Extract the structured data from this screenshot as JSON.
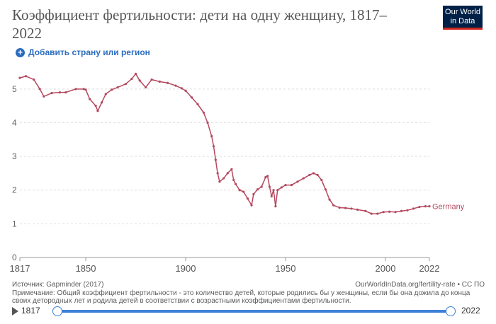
{
  "header": {
    "title": "Коэффициент фертильности: дети на одну женщину, 1817–2022",
    "logo_line1": "Our World",
    "logo_line2": "in Data"
  },
  "controls": {
    "add_label": "Добавить страну или регион"
  },
  "footer": {
    "source": "Источник: Gapminder (2017)",
    "url": "OurWorldInData.org/fertility-rate • CC ПО",
    "note": "Примечание: Общий коэффициент фертильности - это количество детей, которые родились бы у женщины, если бы она дожила до конца своих детородных лет и родила детей в соответствии с возрастными коэффициентами фертильности."
  },
  "timeline": {
    "start": "1817",
    "end": "2022"
  },
  "colors": {
    "series": "#b5485f",
    "grid": "#dddddd",
    "accent": "#3c7fd8"
  },
  "chart_data": {
    "type": "line",
    "title": "Коэффициент фертильности: дети на одну женщину, 1817–2022",
    "xlim": [
      1817,
      2022
    ],
    "ylim": [
      0,
      5.5
    ],
    "x_ticks": [
      "1817",
      "1850",
      "1900",
      "1950",
      "2000",
      "2022"
    ],
    "y_ticks": [
      "0",
      "1",
      "2",
      "3",
      "4",
      "5"
    ],
    "grid": "horizontal",
    "series": [
      {
        "name": "Germany",
        "points": [
          [
            1817,
            5.33
          ],
          [
            1820,
            5.38
          ],
          [
            1824,
            5.28
          ],
          [
            1827,
            5.0
          ],
          [
            1829,
            4.78
          ],
          [
            1833,
            4.88
          ],
          [
            1837,
            4.9
          ],
          [
            1840,
            4.9
          ],
          [
            1845,
            5.0
          ],
          [
            1849,
            5.0
          ],
          [
            1850,
            4.98
          ],
          [
            1852,
            4.7
          ],
          [
            1855,
            4.5
          ],
          [
            1856,
            4.35
          ],
          [
            1858,
            4.6
          ],
          [
            1860,
            4.85
          ],
          [
            1863,
            4.98
          ],
          [
            1866,
            5.05
          ],
          [
            1870,
            5.15
          ],
          [
            1873,
            5.3
          ],
          [
            1875,
            5.45
          ],
          [
            1877,
            5.25
          ],
          [
            1880,
            5.05
          ],
          [
            1883,
            5.28
          ],
          [
            1887,
            5.22
          ],
          [
            1891,
            5.18
          ],
          [
            1895,
            5.1
          ],
          [
            1898,
            5.02
          ],
          [
            1900,
            4.95
          ],
          [
            1903,
            4.75
          ],
          [
            1906,
            4.55
          ],
          [
            1909,
            4.3
          ],
          [
            1911,
            4.0
          ],
          [
            1913,
            3.6
          ],
          [
            1914,
            3.3
          ],
          [
            1915,
            2.9
          ],
          [
            1916,
            2.5
          ],
          [
            1917,
            2.25
          ],
          [
            1919,
            2.35
          ],
          [
            1921,
            2.5
          ],
          [
            1923,
            2.62
          ],
          [
            1924,
            2.3
          ],
          [
            1925,
            2.18
          ],
          [
            1927,
            2.0
          ],
          [
            1929,
            1.95
          ],
          [
            1931,
            1.75
          ],
          [
            1933,
            1.55
          ],
          [
            1934,
            1.88
          ],
          [
            1936,
            2.02
          ],
          [
            1938,
            2.1
          ],
          [
            1940,
            2.38
          ],
          [
            1941,
            2.42
          ],
          [
            1942,
            2.1
          ],
          [
            1943,
            1.82
          ],
          [
            1944,
            2.0
          ],
          [
            1945,
            1.52
          ],
          [
            1946,
            2.0
          ],
          [
            1948,
            2.08
          ],
          [
            1950,
            2.15
          ],
          [
            1953,
            2.15
          ],
          [
            1956,
            2.25
          ],
          [
            1959,
            2.35
          ],
          [
            1962,
            2.45
          ],
          [
            1964,
            2.5
          ],
          [
            1966,
            2.45
          ],
          [
            1968,
            2.3
          ],
          [
            1970,
            2.02
          ],
          [
            1972,
            1.72
          ],
          [
            1974,
            1.55
          ],
          [
            1977,
            1.48
          ],
          [
            1980,
            1.47
          ],
          [
            1983,
            1.45
          ],
          [
            1986,
            1.42
          ],
          [
            1990,
            1.38
          ],
          [
            1993,
            1.3
          ],
          [
            1996,
            1.3
          ],
          [
            1999,
            1.35
          ],
          [
            2002,
            1.36
          ],
          [
            2005,
            1.35
          ],
          [
            2008,
            1.38
          ],
          [
            2011,
            1.4
          ],
          [
            2014,
            1.45
          ],
          [
            2017,
            1.5
          ],
          [
            2020,
            1.52
          ],
          [
            2022,
            1.52
          ]
        ]
      }
    ]
  }
}
